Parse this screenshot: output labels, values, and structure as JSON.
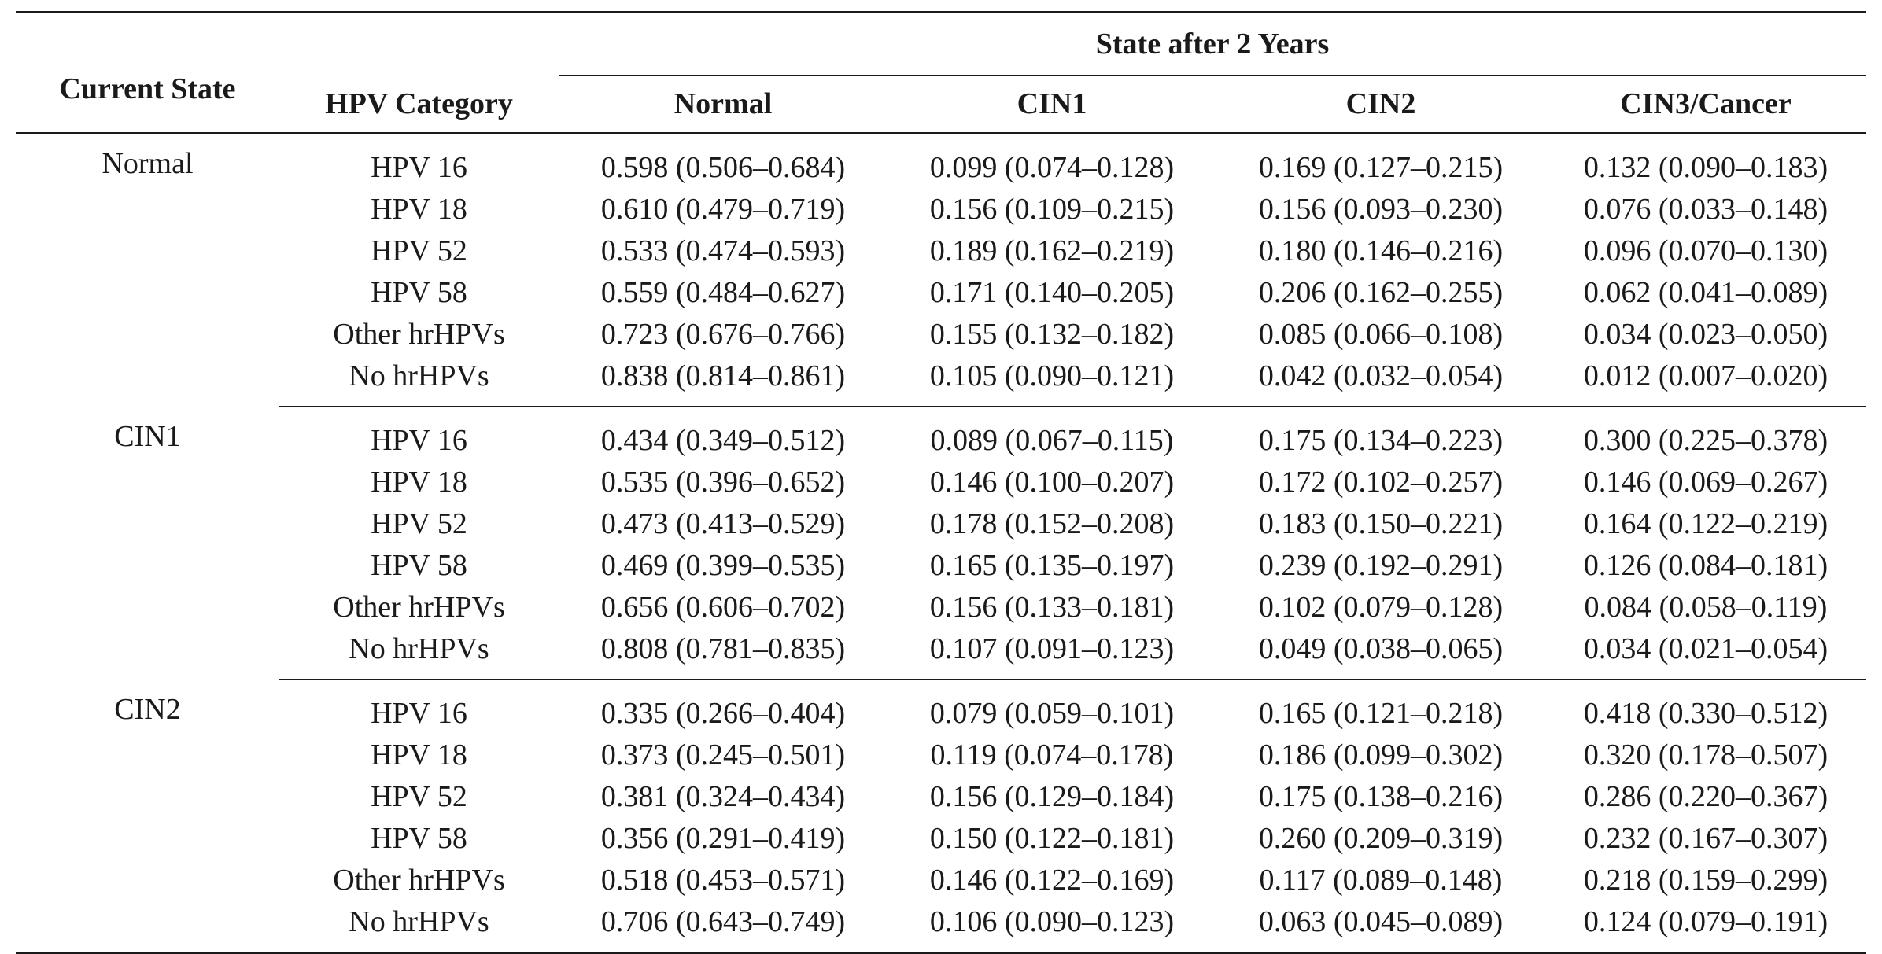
{
  "header": {
    "current_state": "Current State",
    "hpv_category": "HPV Category",
    "spanner": "State after 2 Years",
    "columns": [
      "Normal",
      "CIN1",
      "CIN2",
      "CIN3/Cancer"
    ]
  },
  "groups": [
    {
      "state": "Normal",
      "rows": [
        {
          "hpv": "HPV 16",
          "values": [
            "0.598 (0.506–0.684)",
            "0.099 (0.074–0.128)",
            "0.169 (0.127–0.215)",
            "0.132 (0.090–0.183)"
          ]
        },
        {
          "hpv": "HPV 18",
          "values": [
            "0.610 (0.479–0.719)",
            "0.156 (0.109–0.215)",
            "0.156 (0.093–0.230)",
            "0.076 (0.033–0.148)"
          ]
        },
        {
          "hpv": "HPV 52",
          "values": [
            "0.533 (0.474–0.593)",
            "0.189 (0.162–0.219)",
            "0.180 (0.146–0.216)",
            "0.096 (0.070–0.130)"
          ]
        },
        {
          "hpv": "HPV 58",
          "values": [
            "0.559 (0.484–0.627)",
            "0.171 (0.140–0.205)",
            "0.206 (0.162–0.255)",
            "0.062 (0.041–0.089)"
          ]
        },
        {
          "hpv": "Other hrHPVs",
          "values": [
            "0.723 (0.676–0.766)",
            "0.155 (0.132–0.182)",
            "0.085 (0.066–0.108)",
            "0.034 (0.023–0.050)"
          ]
        },
        {
          "hpv": "No hrHPVs",
          "values": [
            "0.838 (0.814–0.861)",
            "0.105 (0.090–0.121)",
            "0.042 (0.032–0.054)",
            "0.012 (0.007–0.020)"
          ]
        }
      ]
    },
    {
      "state": "CIN1",
      "rows": [
        {
          "hpv": "HPV 16",
          "values": [
            "0.434 (0.349–0.512)",
            "0.089 (0.067–0.115)",
            "0.175 (0.134–0.223)",
            "0.300 (0.225–0.378)"
          ]
        },
        {
          "hpv": "HPV 18",
          "values": [
            "0.535 (0.396–0.652)",
            "0.146 (0.100–0.207)",
            "0.172 (0.102–0.257)",
            "0.146 (0.069–0.267)"
          ]
        },
        {
          "hpv": "HPV 52",
          "values": [
            "0.473 (0.413–0.529)",
            "0.178 (0.152–0.208)",
            "0.183 (0.150–0.221)",
            "0.164 (0.122–0.219)"
          ]
        },
        {
          "hpv": "HPV 58",
          "values": [
            "0.469 (0.399–0.535)",
            "0.165 (0.135–0.197)",
            "0.239 (0.192–0.291)",
            "0.126 (0.084–0.181)"
          ]
        },
        {
          "hpv": "Other hrHPVs",
          "values": [
            "0.656 (0.606–0.702)",
            "0.156 (0.133–0.181)",
            "0.102 (0.079–0.128)",
            "0.084 (0.058–0.119)"
          ]
        },
        {
          "hpv": "No hrHPVs",
          "values": [
            "0.808 (0.781–0.835)",
            "0.107 (0.091–0.123)",
            "0.049 (0.038–0.065)",
            "0.034 (0.021–0.054)"
          ]
        }
      ]
    },
    {
      "state": "CIN2",
      "rows": [
        {
          "hpv": "HPV 16",
          "values": [
            "0.335 (0.266–0.404)",
            "0.079 (0.059–0.101)",
            "0.165 (0.121–0.218)",
            "0.418 (0.330–0.512)"
          ]
        },
        {
          "hpv": "HPV 18",
          "values": [
            "0.373 (0.245–0.501)",
            "0.119 (0.074–0.178)",
            "0.186 (0.099–0.302)",
            "0.320 (0.178–0.507)"
          ]
        },
        {
          "hpv": "HPV 52",
          "values": [
            "0.381 (0.324–0.434)",
            "0.156 (0.129–0.184)",
            "0.175 (0.138–0.216)",
            "0.286 (0.220–0.367)"
          ]
        },
        {
          "hpv": "HPV 58",
          "values": [
            "0.356 (0.291–0.419)",
            "0.150 (0.122–0.181)",
            "0.260 (0.209–0.319)",
            "0.232 (0.167–0.307)"
          ]
        },
        {
          "hpv": "Other hrHPVs",
          "values": [
            "0.518 (0.453–0.571)",
            "0.146 (0.122–0.169)",
            "0.117 (0.089–0.148)",
            "0.218 (0.159–0.299)"
          ]
        },
        {
          "hpv": "No hrHPVs",
          "values": [
            "0.706 (0.643–0.749)",
            "0.106 (0.090–0.123)",
            "0.063 (0.045–0.089)",
            "0.124 (0.079–0.191)"
          ]
        }
      ]
    }
  ]
}
